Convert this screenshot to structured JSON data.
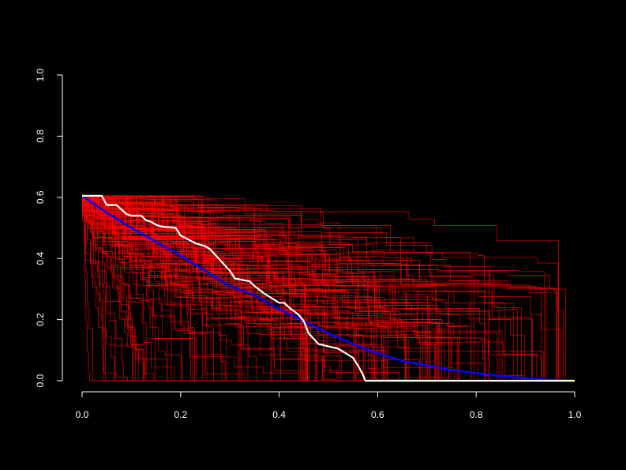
{
  "chart_data": {
    "type": "line",
    "title": "",
    "xlabel": "",
    "ylabel": "",
    "xlim": [
      0,
      1
    ],
    "ylim": [
      0,
      1
    ],
    "x_ticks": [
      "0.0",
      "0.2",
      "0.4",
      "0.6",
      "0.8",
      "1.0"
    ],
    "y_ticks": [
      "0.0",
      "0.2",
      "0.4",
      "0.6",
      "0.8",
      "1.0"
    ],
    "grid": false,
    "legend": "none",
    "background": "#000000",
    "series": [
      {
        "color": "#ff0000",
        "count": 150,
        "start_value": 0.605,
        "style": "thin step curves"
      },
      {
        "color": "#0000ff",
        "style": "thick smooth mean curve",
        "x": [
          0.0,
          0.05,
          0.1,
          0.15,
          0.2,
          0.25,
          0.3,
          0.35,
          0.4,
          0.45,
          0.5,
          0.55,
          0.6,
          0.65,
          0.7,
          0.75,
          0.8,
          0.85,
          0.9,
          0.95,
          1.0
        ],
        "y": [
          0.605,
          0.55,
          0.5,
          0.455,
          0.41,
          0.36,
          0.31,
          0.28,
          0.235,
          0.195,
          0.155,
          0.12,
          0.09,
          0.065,
          0.05,
          0.035,
          0.025,
          0.015,
          0.008,
          0.003,
          0.0
        ]
      },
      {
        "color": "#ffffff",
        "style": "thick step curve",
        "x": [
          0.0,
          0.04,
          0.05,
          0.06,
          0.07,
          0.08,
          0.09,
          0.1,
          0.12,
          0.13,
          0.14,
          0.15,
          0.16,
          0.19,
          0.2,
          0.23,
          0.25,
          0.26,
          0.28,
          0.3,
          0.31,
          0.34,
          0.35,
          0.37,
          0.4,
          0.41,
          0.42,
          0.44,
          0.45,
          0.46,
          0.48,
          0.52,
          0.53,
          0.55,
          0.56,
          0.57,
          0.575,
          1.0
        ],
        "y": [
          0.605,
          0.605,
          0.575,
          0.575,
          0.575,
          0.56,
          0.545,
          0.54,
          0.54,
          0.525,
          0.52,
          0.51,
          0.505,
          0.5,
          0.475,
          0.45,
          0.44,
          0.43,
          0.395,
          0.36,
          0.335,
          0.325,
          0.31,
          0.285,
          0.255,
          0.255,
          0.24,
          0.215,
          0.195,
          0.155,
          0.12,
          0.105,
          0.095,
          0.075,
          0.05,
          0.02,
          0.0,
          0.0
        ]
      }
    ]
  }
}
